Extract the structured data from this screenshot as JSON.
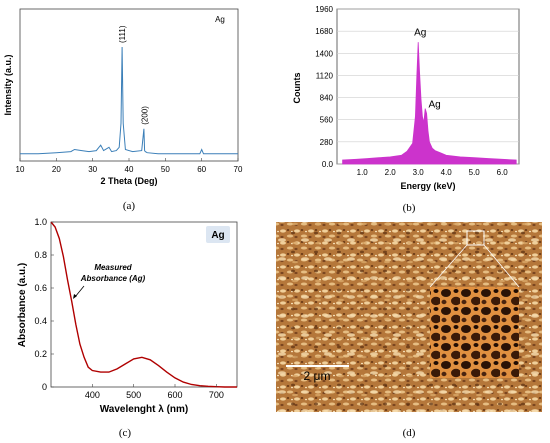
{
  "chart_data": [
    {
      "panel": "(a)",
      "type": "line",
      "title": "Ag",
      "xlabel": "2 Theta (Deg)",
      "ylabel": "Intensity (a.u.)",
      "xlim": [
        10,
        70
      ],
      "xticks": [
        "10",
        "20",
        "30",
        "40",
        "50",
        "60",
        "70"
      ],
      "y_tick_labels_shown": false,
      "color": "#3b7fb8",
      "x": [
        10,
        15,
        20,
        24,
        25,
        27,
        29,
        31,
        32.2,
        33,
        34.5,
        35.2,
        36.5,
        37.3,
        37.8,
        38.1,
        38.4,
        39,
        41,
        43.5,
        44.1,
        44.3,
        44.5,
        45,
        48,
        55,
        59.5,
        60,
        60.5,
        65,
        70
      ],
      "y": [
        0.02,
        0.02,
        0.03,
        0.04,
        0.06,
        0.05,
        0.04,
        0.05,
        0.1,
        0.05,
        0.08,
        0.04,
        0.05,
        0.08,
        0.3,
        1.0,
        0.3,
        0.06,
        0.04,
        0.05,
        0.25,
        0.05,
        0.04,
        0.03,
        0.02,
        0.02,
        0.02,
        0.06,
        0.02,
        0.02,
        0.02
      ],
      "annotations": [
        {
          "text": "(111)",
          "x": 38.1
        },
        {
          "text": "(200)",
          "x": 44.3
        }
      ]
    },
    {
      "panel": "(b)",
      "type": "bar",
      "xlabel": "Energy (keV)",
      "ylabel": "Counts",
      "xlim": [
        0.1,
        6.6
      ],
      "ylim": [
        0,
        1960
      ],
      "xticks": [
        "1.0",
        "2.0",
        "3.0",
        "4.0",
        "5.0",
        "6.0"
      ],
      "yticks": [
        "0.0",
        "280",
        "560",
        "840",
        "1120",
        "1400",
        "1680",
        "1960"
      ],
      "color": "#cc33cc",
      "x": [
        0.3,
        0.8,
        1.2,
        1.6,
        2.0,
        2.4,
        2.6,
        2.8,
        2.9,
        2.95,
        3.0,
        3.05,
        3.1,
        3.15,
        3.2,
        3.25,
        3.3,
        3.35,
        3.4,
        3.5,
        3.6,
        3.8,
        4.0,
        4.5,
        5.0,
        5.5,
        6.0,
        6.5
      ],
      "y": [
        50,
        60,
        70,
        80,
        90,
        110,
        160,
        260,
        600,
        1100,
        1540,
        1150,
        820,
        600,
        520,
        700,
        640,
        420,
        280,
        200,
        170,
        140,
        110,
        90,
        80,
        70,
        60,
        50
      ],
      "annotations": [
        {
          "text": "Ag",
          "x": 3.0,
          "y": 1600
        },
        {
          "text": "Ag",
          "x": 3.3,
          "y": 690
        }
      ]
    },
    {
      "panel": "(c)",
      "type": "line",
      "xlabel": "Wavelenght λ (nm)",
      "ylabel": "Absorbance (a.u.)",
      "xlim": [
        300,
        750
      ],
      "ylim": [
        0,
        1.0
      ],
      "xticks": [
        "400",
        "500",
        "600",
        "700"
      ],
      "yticks": [
        "0",
        "0.2",
        "0.4",
        "0.6",
        "0.8",
        "1.0"
      ],
      "color": "#b00000",
      "badge": "Ag",
      "x": [
        300,
        310,
        320,
        330,
        340,
        350,
        360,
        370,
        380,
        390,
        400,
        420,
        440,
        460,
        480,
        500,
        520,
        540,
        560,
        580,
        600,
        620,
        640,
        660,
        680,
        700,
        720,
        750
      ],
      "y": [
        1.0,
        0.97,
        0.9,
        0.79,
        0.65,
        0.52,
        0.38,
        0.26,
        0.18,
        0.12,
        0.1,
        0.09,
        0.09,
        0.11,
        0.14,
        0.17,
        0.18,
        0.165,
        0.13,
        0.09,
        0.055,
        0.03,
        0.015,
        0.008,
        0.004,
        0.002,
        0.0,
        0.0
      ],
      "annotation": {
        "line1": "Measured",
        "line2": "Absorbance (Ag)"
      }
    }
  ],
  "micrograph": {
    "panel": "(d)",
    "scale_bar": "2 μm"
  }
}
